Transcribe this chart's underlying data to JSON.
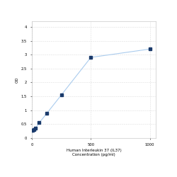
{
  "x": [
    0,
    7.8,
    15.6,
    31.25,
    62.5,
    125,
    250,
    500,
    1000
  ],
  "y": [
    0.27,
    0.29,
    0.31,
    0.36,
    0.55,
    0.88,
    1.55,
    2.9,
    3.2
  ],
  "line_color": "#aaccee",
  "marker_color": "#1a3a6b",
  "marker_style": "s",
  "marker_size": 2.5,
  "line_width": 0.8,
  "xlabel_line1": "Human Interleukin 37 (IL37)",
  "xlabel_line2": "Concentration (pg/ml)",
  "ylabel": "OD",
  "xlim": [
    0,
    1050
  ],
  "ylim": [
    0,
    4.2
  ],
  "yticks": [
    0,
    0.5,
    1.0,
    1.5,
    2.0,
    2.5,
    3.0,
    3.5,
    4.0
  ],
  "xticks": [
    0,
    500,
    1000
  ],
  "xtick_labels": [
    "0",
    "500",
    "1000"
  ],
  "grid_color": "#dddddd",
  "bg_color": "#ffffff",
  "label_fontsize": 4.0,
  "tick_fontsize": 3.8
}
